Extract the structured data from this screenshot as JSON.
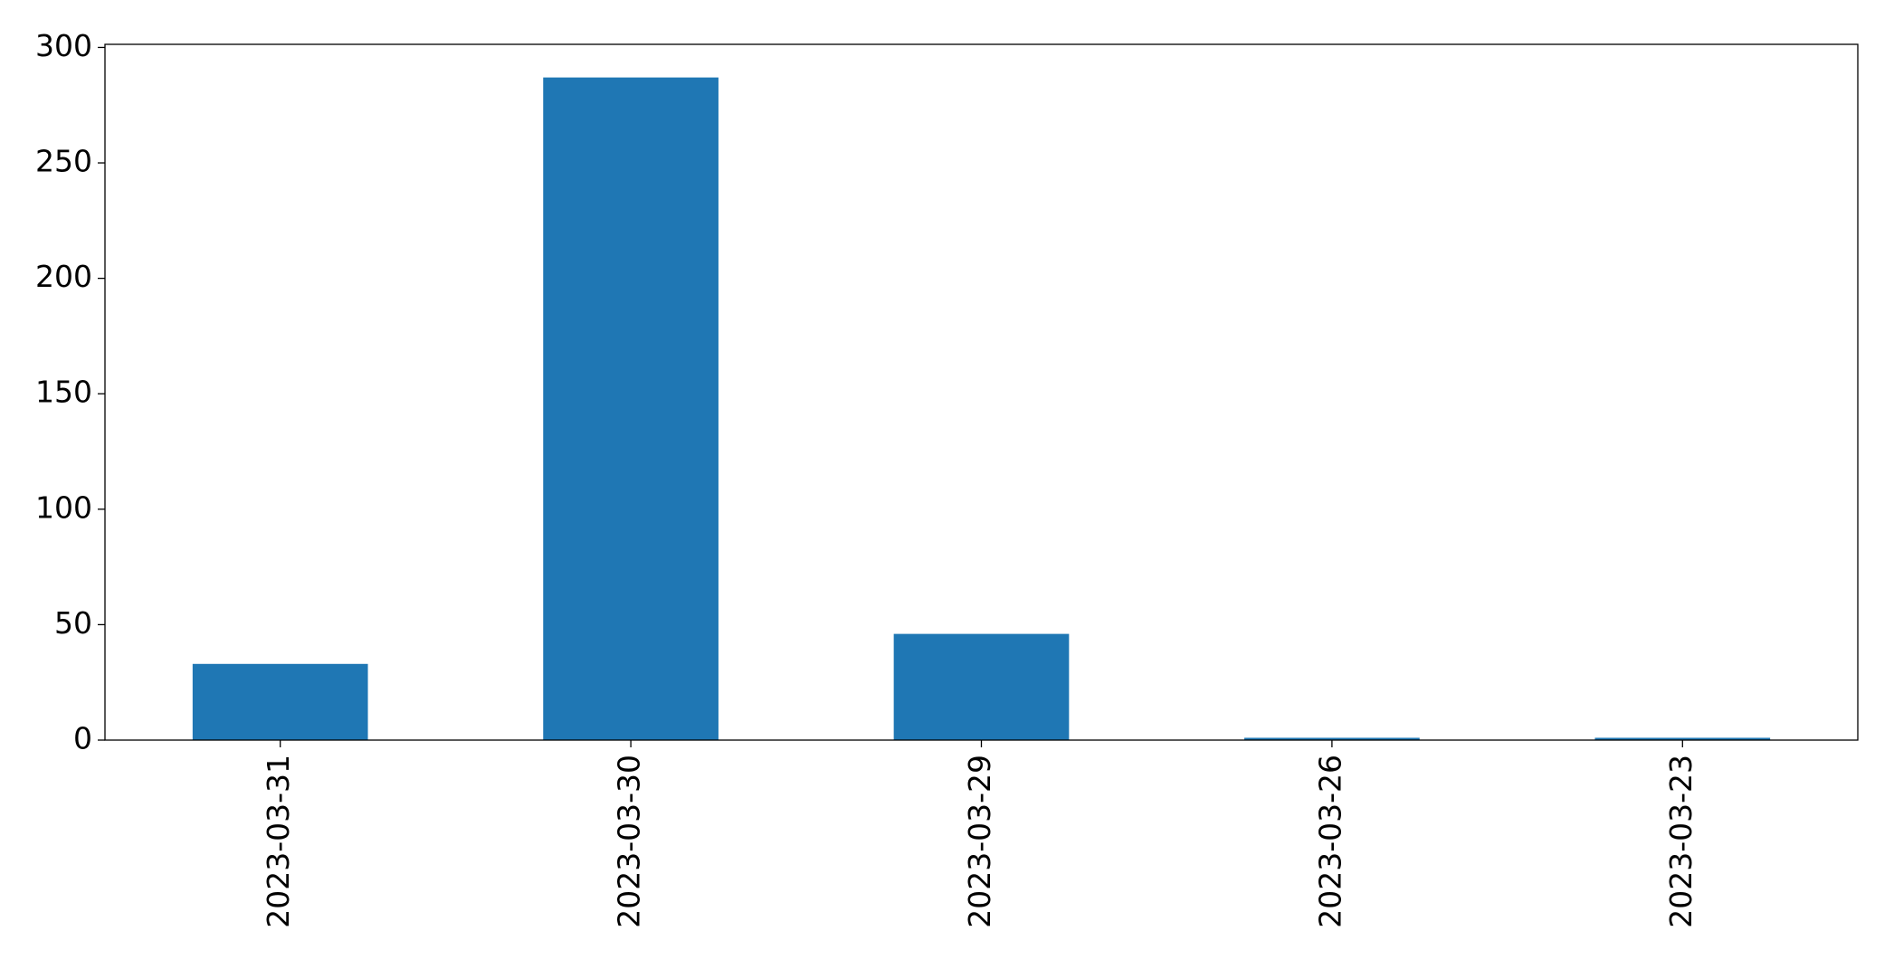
{
  "chart_data": {
    "type": "bar",
    "categories": [
      "2023-03-31",
      "2023-03-30",
      "2023-03-29",
      "2023-03-26",
      "2023-03-23"
    ],
    "values": [
      33,
      287,
      46,
      1,
      1
    ],
    "color": "#1f77b4",
    "ylim": [
      0,
      301.35
    ],
    "yticks": [
      0,
      50,
      100,
      150,
      200,
      250,
      300
    ],
    "grid": false
  }
}
